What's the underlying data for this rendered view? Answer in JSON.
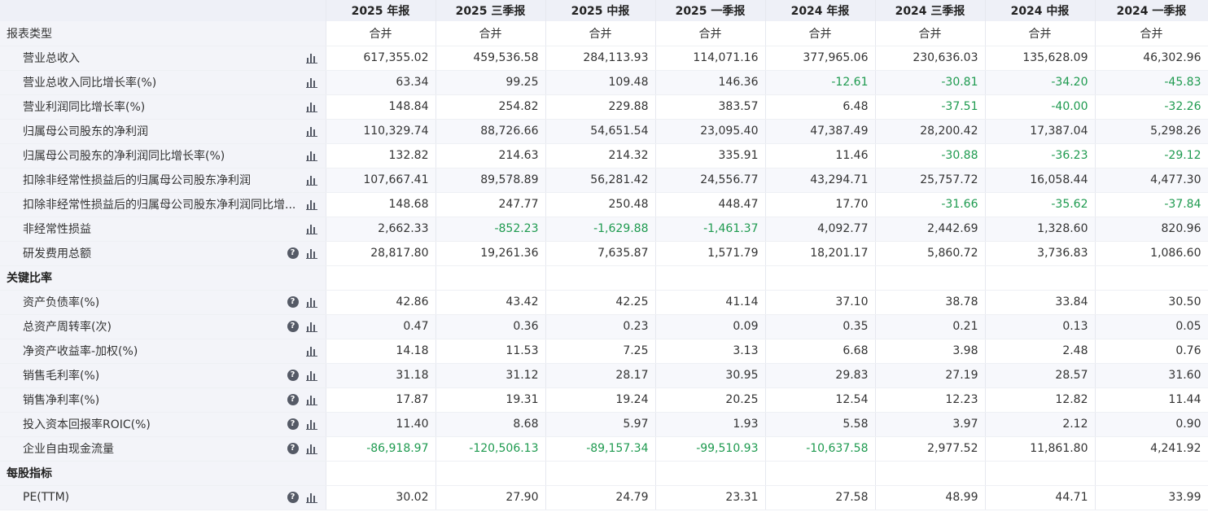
{
  "columns": [
    "2025 年报",
    "2025 三季报",
    "2025 中报",
    "2025 一季报",
    "2024 年报",
    "2024 三季报",
    "2024 中报",
    "2024 一季报"
  ],
  "report_type_row": {
    "label": "报表类型",
    "values": [
      "合并",
      "合并",
      "合并",
      "合并",
      "合并",
      "合并",
      "合并",
      "合并"
    ]
  },
  "sections": [
    {
      "rows": [
        {
          "label": "营业总收入",
          "help": false,
          "values": [
            "617,355.02",
            "459,536.58",
            "284,113.93",
            "114,071.16",
            "377,965.06",
            "230,636.03",
            "135,628.09",
            "46,302.96"
          ]
        },
        {
          "label": "营业总收入同比增长率(%)",
          "help": false,
          "values": [
            "63.34",
            "99.25",
            "109.48",
            "146.36",
            "-12.61",
            "-30.81",
            "-34.20",
            "-45.83"
          ]
        },
        {
          "label": "营业利润同比增长率(%)",
          "help": false,
          "values": [
            "148.84",
            "254.82",
            "229.88",
            "383.57",
            "6.48",
            "-37.51",
            "-40.00",
            "-32.26"
          ]
        },
        {
          "label": "归属母公司股东的净利润",
          "help": false,
          "values": [
            "110,329.74",
            "88,726.66",
            "54,651.54",
            "23,095.40",
            "47,387.49",
            "28,200.42",
            "17,387.04",
            "5,298.26"
          ]
        },
        {
          "label": "归属母公司股东的净利润同比增长率(%)",
          "help": false,
          "values": [
            "132.82",
            "214.63",
            "214.32",
            "335.91",
            "11.46",
            "-30.88",
            "-36.23",
            "-29.12"
          ]
        },
        {
          "label": "扣除非经常性损益后的归属母公司股东净利润",
          "help": false,
          "values": [
            "107,667.41",
            "89,578.89",
            "56,281.42",
            "24,556.77",
            "43,294.71",
            "25,757.72",
            "16,058.44",
            "4,477.30"
          ]
        },
        {
          "label": "扣除非经常性损益后的归属母公司股东净利润同比增...",
          "help": false,
          "values": [
            "148.68",
            "247.77",
            "250.48",
            "448.47",
            "17.70",
            "-31.66",
            "-35.62",
            "-37.84"
          ]
        },
        {
          "label": "非经常性损益",
          "help": false,
          "values": [
            "2,662.33",
            "-852.23",
            "-1,629.88",
            "-1,461.37",
            "4,092.77",
            "2,442.69",
            "1,328.60",
            "820.96"
          ]
        },
        {
          "label": "研发费用总额",
          "help": true,
          "values": [
            "28,817.80",
            "19,261.36",
            "7,635.87",
            "1,571.79",
            "18,201.17",
            "5,860.72",
            "3,736.83",
            "1,086.60"
          ]
        }
      ]
    },
    {
      "title": "关键比率",
      "rows": [
        {
          "label": "资产负债率(%)",
          "help": true,
          "values": [
            "42.86",
            "43.42",
            "42.25",
            "41.14",
            "37.10",
            "38.78",
            "33.84",
            "30.50"
          ]
        },
        {
          "label": "总资产周转率(次)",
          "help": true,
          "values": [
            "0.47",
            "0.36",
            "0.23",
            "0.09",
            "0.35",
            "0.21",
            "0.13",
            "0.05"
          ]
        },
        {
          "label": "净资产收益率-加权(%)",
          "help": false,
          "values": [
            "14.18",
            "11.53",
            "7.25",
            "3.13",
            "6.68",
            "3.98",
            "2.48",
            "0.76"
          ]
        },
        {
          "label": "销售毛利率(%)",
          "help": true,
          "values": [
            "31.18",
            "31.12",
            "28.17",
            "30.95",
            "29.83",
            "27.19",
            "28.57",
            "31.60"
          ]
        },
        {
          "label": "销售净利率(%)",
          "help": true,
          "values": [
            "17.87",
            "19.31",
            "19.24",
            "20.25",
            "12.54",
            "12.23",
            "12.82",
            "11.44"
          ]
        },
        {
          "label": "投入资本回报率ROIC(%)",
          "help": true,
          "values": [
            "11.40",
            "8.68",
            "5.97",
            "1.93",
            "5.58",
            "3.97",
            "2.12",
            "0.90"
          ]
        },
        {
          "label": "企业自由现金流量",
          "help": true,
          "values": [
            "-86,918.97",
            "-120,506.13",
            "-89,157.34",
            "-99,510.93",
            "-10,637.58",
            "2,977.52",
            "11,861.80",
            "4,241.92"
          ]
        }
      ]
    },
    {
      "title": "每股指标",
      "rows": [
        {
          "label": "PE(TTM)",
          "help": true,
          "values": [
            "30.02",
            "27.90",
            "24.79",
            "23.31",
            "27.58",
            "48.99",
            "44.71",
            "33.99"
          ]
        }
      ]
    }
  ],
  "colors": {
    "negative": "#1e9a4f",
    "header_bg": "#eef0f7",
    "label_bg": "#f3f4f9",
    "text": "#333333"
  },
  "icons": {
    "help": "question-circle-icon",
    "chart": "bar-chart-icon"
  },
  "help_glyph": "?"
}
